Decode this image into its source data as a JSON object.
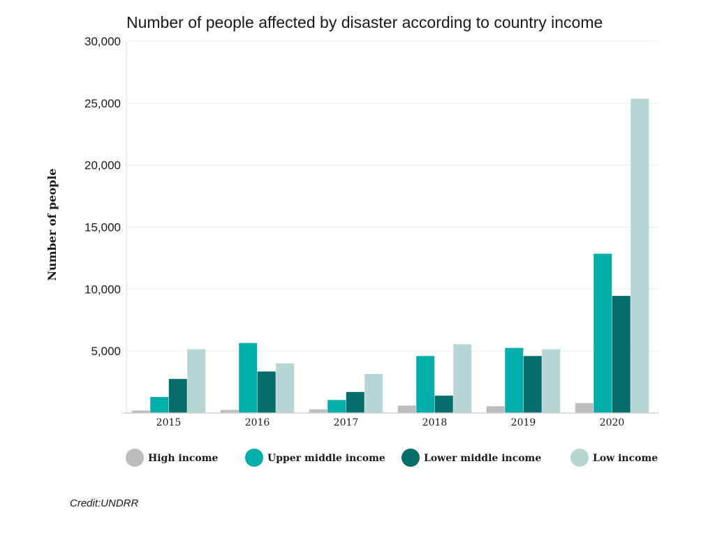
{
  "chart_data": {
    "type": "bar",
    "title": "Number of people affected by disaster according to country income",
    "xlabel": "",
    "ylabel": "Number of people",
    "ylim": [
      0,
      30000
    ],
    "yticks": [
      5000,
      10000,
      15000,
      20000,
      25000,
      30000
    ],
    "ytick_labels": [
      "5,000",
      "10,000",
      "15,000",
      "20,000",
      "25,000",
      "30,000"
    ],
    "grid": true,
    "legend_position": "bottom",
    "categories": [
      "2015",
      "2016",
      "2017",
      "2018",
      "2019",
      "2020"
    ],
    "series": [
      {
        "name": "High income",
        "color": "#bdbdbb",
        "values": [
          200,
          250,
          300,
          600,
          550,
          800
        ]
      },
      {
        "name": "Upper middle income",
        "color": "#00aeaa",
        "values": [
          1300,
          5650,
          1050,
          4600,
          5250,
          12850
        ]
      },
      {
        "name": "Lower middle income",
        "color": "#056e6a",
        "values": [
          2750,
          3350,
          1700,
          1400,
          4600,
          9450
        ]
      },
      {
        "name": "Low income",
        "color": "#b6d5d3",
        "values": [
          5150,
          4000,
          3150,
          5550,
          5150,
          25350
        ]
      }
    ]
  },
  "credit": "Credit:UNDRR"
}
